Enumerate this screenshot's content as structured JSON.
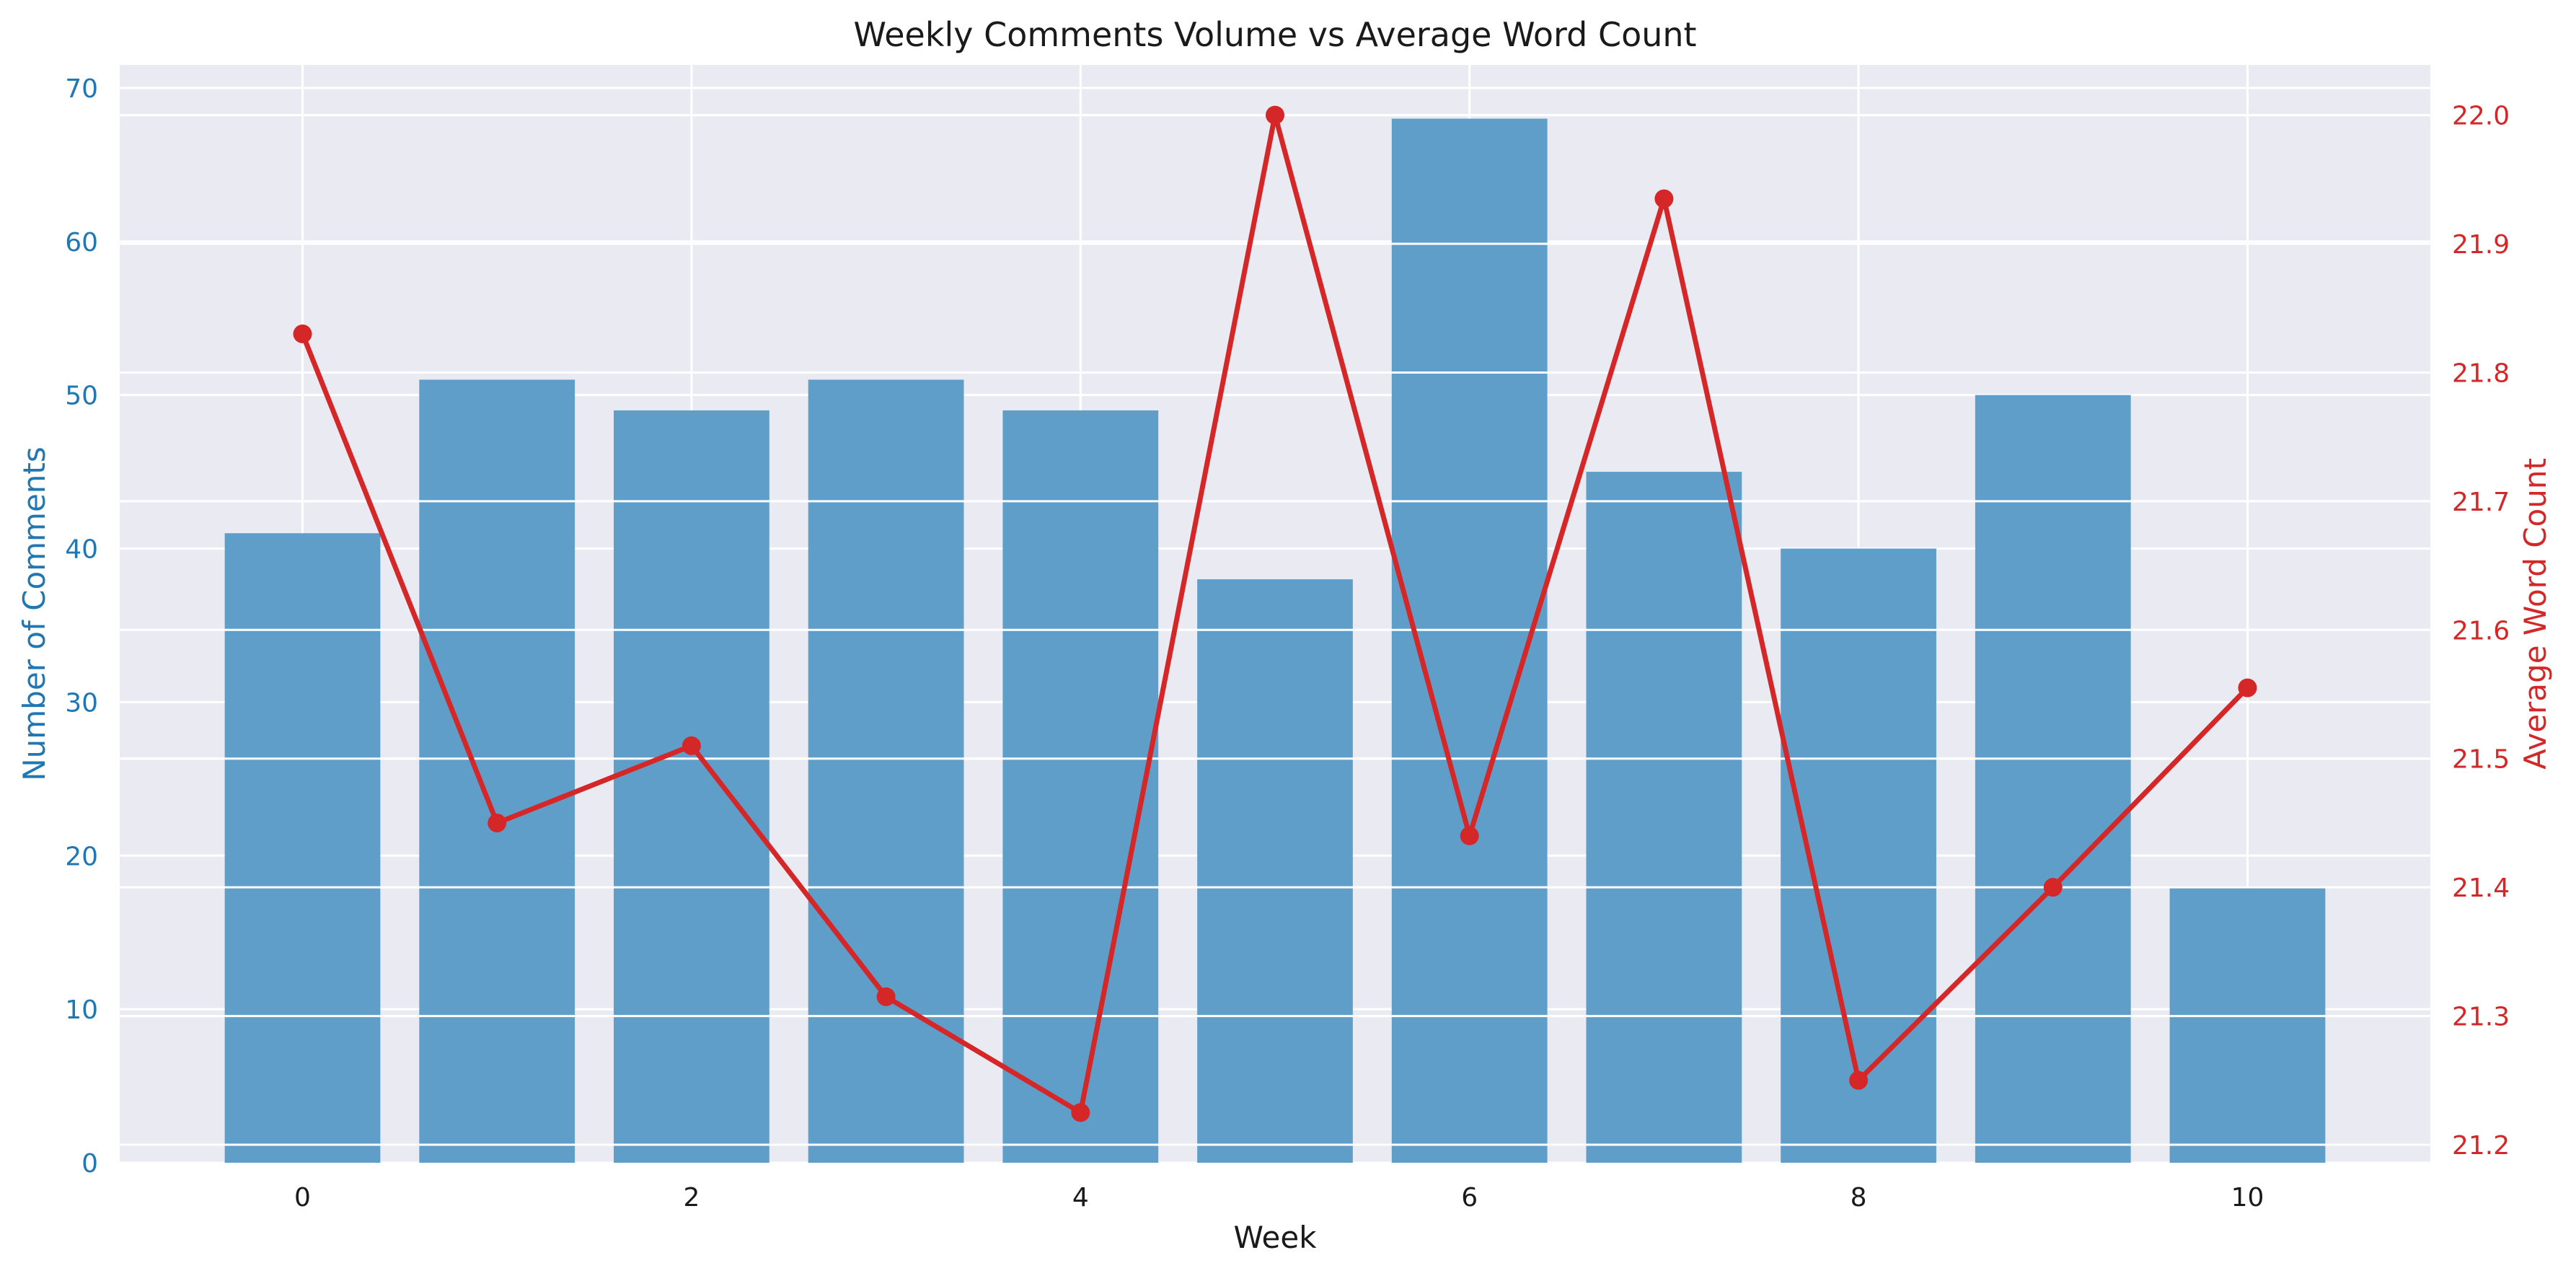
{
  "chart_data": {
    "type": "bar",
    "title": "Weekly Comments Volume vs Average Word Count",
    "xlabel": "Week",
    "x": [
      0,
      1,
      2,
      3,
      4,
      5,
      6,
      7,
      8,
      9,
      10
    ],
    "x_tick_labels": [
      "0",
      "2",
      "4",
      "6",
      "8",
      "10"
    ],
    "xlim": [
      -0.94,
      10.94
    ],
    "grid": true,
    "series": [
      {
        "type": "bar",
        "axis": "left",
        "color": "#5b9bc8",
        "values": [
          41,
          51,
          49,
          51,
          49,
          38,
          68,
          45,
          40,
          50,
          18
        ]
      },
      {
        "type": "line",
        "axis": "right",
        "color": "#d62728",
        "values": [
          21.83,
          21.45,
          21.51,
          21.315,
          21.225,
          22.0,
          21.44,
          21.935,
          21.25,
          21.4,
          21.555
        ]
      }
    ],
    "left_axis": {
      "label": "Number of Comments",
      "color": "#1f77b4",
      "ylim": [
        0,
        71.5
      ],
      "ticks": [
        "0",
        "10",
        "20",
        "30",
        "40",
        "50",
        "60",
        "70"
      ]
    },
    "right_axis": {
      "label": "Average Word Count",
      "color": "#d62728",
      "ylim": [
        21.186,
        22.039
      ],
      "ticks": [
        "21.2",
        "21.3",
        "21.4",
        "21.5",
        "21.6",
        "21.7",
        "21.8",
        "21.9",
        "22.0"
      ]
    }
  }
}
